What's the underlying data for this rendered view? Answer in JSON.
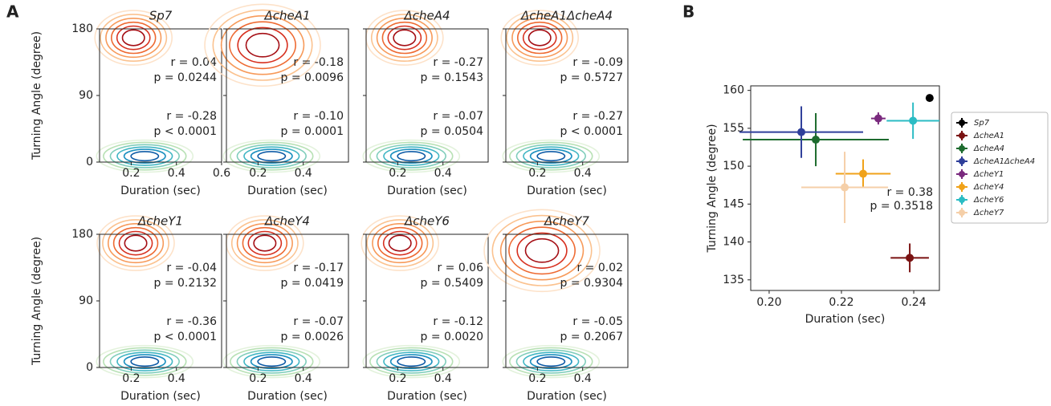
{
  "panel_labels": [
    "A",
    "B"
  ],
  "chart_data": [
    {
      "type": "contour",
      "title": "Sp7",
      "xlabel": "Duration (sec)",
      "ylabel": "Turning Angle (degree)",
      "xlim": [
        0.06,
        0.6
      ],
      "ylim": [
        0,
        180
      ],
      "xticks": [
        0.2,
        0.4,
        0.6
      ],
      "yticks": [
        0,
        90,
        180
      ],
      "ytick_labels": true,
      "annotations": [
        {
          "text": "r = 0.04",
          "color": "#e8231e"
        },
        {
          "text": "p = 0.0244",
          "color": "#e8231e"
        },
        {
          "text": "r = -0.28",
          "color": "#1f3f9f"
        },
        {
          "text": "p < 0.0001",
          "color": "#1f3f9f"
        }
      ]
    },
    {
      "type": "contour",
      "title": "ΔcheA1",
      "xlabel": "Duration (sec)",
      "xlim": [
        0.06,
        0.6
      ],
      "ylim": [
        0,
        180
      ],
      "xticks": [
        0.2,
        0.4
      ],
      "yticks": [
        0,
        90,
        180
      ],
      "ytick_labels": false,
      "annotations": [
        {
          "text": "r = -0.18",
          "color": "#e8231e"
        },
        {
          "text": "p = 0.0096",
          "color": "#e8231e"
        },
        {
          "text": "r = -0.10",
          "color": "#1f3f9f"
        },
        {
          "text": "p = 0.0001",
          "color": "#1f3f9f"
        }
      ]
    },
    {
      "type": "contour",
      "title": "ΔcheA4",
      "xlabel": "Duration (sec)",
      "xlim": [
        0.06,
        0.6
      ],
      "ylim": [
        0,
        180
      ],
      "xticks": [
        0.2,
        0.4
      ],
      "yticks": [
        0,
        90,
        180
      ],
      "ytick_labels": false,
      "annotations": [
        {
          "text": "r = -0.27",
          "color": "#e8231e"
        },
        {
          "text": "p = 0.1543",
          "color": "#e8231e"
        },
        {
          "text": "r = -0.07",
          "color": "#1f3f9f"
        },
        {
          "text": "p = 0.0504",
          "color": "#1f3f9f"
        }
      ]
    },
    {
      "type": "contour",
      "title": "ΔcheA1ΔcheA4",
      "xlabel": "Duration (sec)",
      "xlim": [
        0.06,
        0.6
      ],
      "ylim": [
        0,
        180
      ],
      "xticks": [
        0.2,
        0.4
      ],
      "yticks": [
        0,
        90,
        180
      ],
      "ytick_labels": false,
      "annotations": [
        {
          "text": "r = -0.09",
          "color": "#e8231e"
        },
        {
          "text": "p = 0.5727",
          "color": "#e8231e"
        },
        {
          "text": "r = -0.27",
          "color": "#1f3f9f"
        },
        {
          "text": "p < 0.0001",
          "color": "#1f3f9f"
        }
      ]
    },
    {
      "type": "contour",
      "title": "ΔcheY1",
      "xlabel": "Duration (sec)",
      "ylabel": "Turning Angle (degree)",
      "xlim": [
        0.06,
        0.6
      ],
      "ylim": [
        0,
        180
      ],
      "xticks": [
        0.2,
        0.4
      ],
      "yticks": [
        0,
        90,
        180
      ],
      "ytick_labels": true,
      "annotations": [
        {
          "text": "r = -0.04",
          "color": "#e8231e"
        },
        {
          "text": "p = 0.2132",
          "color": "#e8231e"
        },
        {
          "text": "r = -0.36",
          "color": "#1f3f9f"
        },
        {
          "text": "p < 0.0001",
          "color": "#1f3f9f"
        }
      ]
    },
    {
      "type": "contour",
      "title": "ΔcheY4",
      "xlabel": "Duration (sec)",
      "xlim": [
        0.06,
        0.6
      ],
      "ylim": [
        0,
        180
      ],
      "xticks": [
        0.2,
        0.4
      ],
      "yticks": [
        0,
        90,
        180
      ],
      "ytick_labels": false,
      "annotations": [
        {
          "text": "r = -0.17",
          "color": "#e8231e"
        },
        {
          "text": "p = 0.0419",
          "color": "#e8231e"
        },
        {
          "text": "r = -0.07",
          "color": "#1f3f9f"
        },
        {
          "text": "p = 0.0026",
          "color": "#1f3f9f"
        }
      ]
    },
    {
      "type": "contour",
      "title": "ΔcheY6",
      "xlabel": "Duration (sec)",
      "xlim": [
        0.06,
        0.6
      ],
      "ylim": [
        0,
        180
      ],
      "xticks": [
        0.2,
        0.4
      ],
      "yticks": [
        0,
        90,
        180
      ],
      "ytick_labels": false,
      "annotations": [
        {
          "text": "r = 0.06",
          "color": "#e8231e"
        },
        {
          "text": "p = 0.5409",
          "color": "#e8231e"
        },
        {
          "text": "r = -0.12",
          "color": "#1f3f9f"
        },
        {
          "text": "p = 0.0020",
          "color": "#1f3f9f"
        }
      ]
    },
    {
      "type": "contour",
      "title": "ΔcheY7",
      "xlabel": "Duration (sec)",
      "xlim": [
        0.06,
        0.6
      ],
      "ylim": [
        0,
        180
      ],
      "xticks": [
        0.2,
        0.4
      ],
      "yticks": [
        0,
        90,
        180
      ],
      "ytick_labels": false,
      "annotations": [
        {
          "text": "r = 0.02",
          "color": "#e8231e"
        },
        {
          "text": "p = 0.9304",
          "color": "#e8231e"
        },
        {
          "text": "r = -0.05",
          "color": "#1f3f9f"
        },
        {
          "text": "p = 0.2067",
          "color": "#1f3f9f"
        }
      ]
    },
    {
      "type": "scatter",
      "xlabel": "Duration (sec)",
      "ylabel": "Turning Angle (degree)",
      "xlim": [
        0.1949,
        0.2471
      ],
      "ylim": [
        133.6,
        160.6
      ],
      "xticks": [
        {
          "value": 0.2,
          "label": "0.20"
        },
        {
          "value": 0.22,
          "label": "0.22"
        },
        {
          "value": 0.24,
          "label": "0.24"
        }
      ],
      "yticks": [
        135,
        140,
        145,
        150,
        155,
        160
      ],
      "legend": "outside-right",
      "annotations": [
        {
          "text": "r = 0.38",
          "color": "#e8231e"
        },
        {
          "text": "p = 0.3518",
          "color": "#e8231e"
        }
      ],
      "series": [
        {
          "name": "Sp7",
          "color": "#000000",
          "x": [
            0.2444
          ],
          "values": [
            159.0
          ],
          "xerr": [
            0.001
          ],
          "yerr": [
            0.4
          ]
        },
        {
          "name": "ΔcheA1",
          "color": "#7a1212",
          "x": [
            0.2389
          ],
          "values": [
            137.9
          ],
          "xerr": [
            0.0053
          ],
          "yerr": [
            1.9
          ]
        },
        {
          "name": "ΔcheA4",
          "color": "#1d6b2e",
          "x": [
            0.2129
          ],
          "values": [
            153.5
          ],
          "xerr": [
            0.0202
          ],
          "yerr": [
            3.5
          ]
        },
        {
          "name": "ΔcheA1ΔcheA4",
          "color": "#2f3f9a",
          "x": [
            0.2089
          ],
          "values": [
            154.5
          ],
          "xerr": [
            0.0171
          ],
          "yerr": [
            3.4
          ]
        },
        {
          "name": "ΔcheY1",
          "color": "#7a2a7e",
          "x": [
            0.2302
          ],
          "values": [
            156.3
          ],
          "xerr": [
            0.002
          ],
          "yerr": [
            0.8
          ]
        },
        {
          "name": "ΔcheY4",
          "color": "#f0a21a",
          "x": [
            0.226
          ],
          "values": [
            149.0
          ],
          "xerr": [
            0.0076
          ],
          "yerr": [
            1.9
          ]
        },
        {
          "name": "ΔcheY6",
          "color": "#2bbcc4",
          "x": [
            0.2398
          ],
          "values": [
            156.0
          ],
          "xerr": [
            0.0073
          ],
          "yerr": [
            2.4
          ]
        },
        {
          "name": "ΔcheY7",
          "color": "#f5cfa8",
          "x": [
            0.2209
          ],
          "values": [
            147.2
          ],
          "xerr": [
            0.012
          ],
          "yerr": [
            4.7
          ]
        }
      ]
    }
  ]
}
